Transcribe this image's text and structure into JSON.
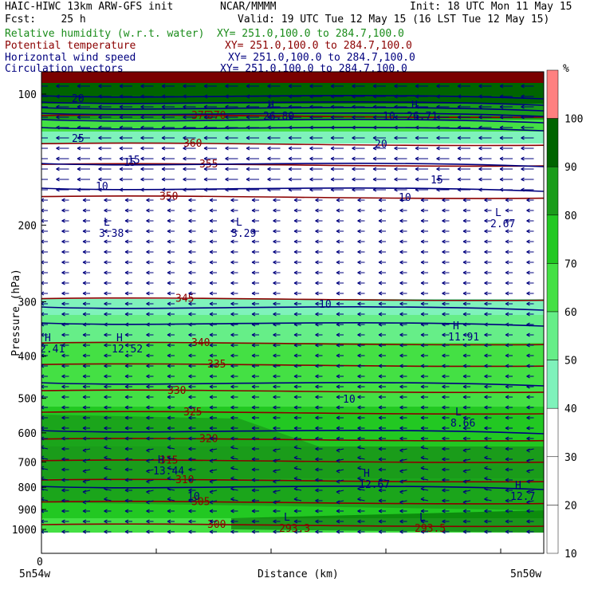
{
  "header": {
    "model": "HAIC-HIWC 13km ARW-GFS init",
    "org": "NCAR/MMMM",
    "init": "Init: 18 UTC Mon 11 May 15",
    "fcst": "Fcst:    25 h",
    "valid": "Valid: 19 UTC Tue 12 May 15 (16 LST Tue 12 May 15)"
  },
  "fields": [
    {
      "name": "Relative humidity (w.r.t. water)",
      "xy": "XY= 251.0,100.0 to 284.7,100.0",
      "color": "#1a8c1a"
    },
    {
      "name": "Potential temperature",
      "xy": "XY= 251.0,100.0 to 284.7,100.0",
      "color": "#8b0000"
    },
    {
      "name": "Horizontal wind speed",
      "xy": "XY= 251.0,100.0 to 284.7,100.0",
      "color": "#00007f"
    },
    {
      "name": "Circulation vectors",
      "xy": "XY= 251.0,100.0 to 284.7,100.0",
      "color": "#00007f"
    }
  ],
  "axes": {
    "ylabel": "Pressure (hPa)",
    "xlabel": "Distance (km)",
    "x_left_label": "5n54w",
    "x_right_label": "5n50w",
    "x_zero": "0",
    "y_ticks": [
      "100",
      "200",
      "300",
      "400",
      "500",
      "600",
      "700",
      "800",
      "900",
      "1000"
    ]
  },
  "colorbar": {
    "unit": "%",
    "labels": [
      "100",
      "90",
      "80",
      "70",
      "60",
      "50",
      "40",
      "30",
      "20",
      "10"
    ],
    "colors": [
      "#ff8080",
      "#006400",
      "#1a9c1a",
      "#22c822",
      "#44e044",
      "#66ee88",
      "#7ff2bb",
      "#ffffff",
      "#ffffff",
      "#ffffff",
      "#ffffff"
    ]
  },
  "chart_data": {
    "type": "heatmap",
    "y_range_hpa": [
      1000,
      100
    ],
    "y_scale": "log",
    "theta_contours": [
      {
        "label": "375",
        "p": 112
      },
      {
        "label": "370",
        "p": 112
      },
      {
        "label": "360",
        "p": 130
      },
      {
        "label": "355",
        "p": 145
      },
      {
        "label": "350",
        "p": 172
      },
      {
        "label": "345",
        "p": 295
      },
      {
        "label": "340",
        "p": 373
      },
      {
        "label": "335",
        "p": 418
      },
      {
        "label": "330",
        "p": 480
      },
      {
        "label": "325",
        "p": 538
      },
      {
        "label": "320",
        "p": 620
      },
      {
        "label": "315",
        "p": 695
      },
      {
        "label": "310",
        "p": 770
      },
      {
        "label": "305",
        "p": 865
      },
      {
        "label": "300",
        "p": 975
      }
    ],
    "wind_labels": [
      "15",
      "20",
      "25",
      "15",
      "10",
      "10",
      "10",
      "10",
      "10",
      "10",
      "20",
      "15"
    ],
    "extrema": [
      {
        "type": "L",
        "value": "3.38"
      },
      {
        "type": "L",
        "value": "3.29"
      },
      {
        "type": "L",
        "value": "2.67"
      },
      {
        "type": "H",
        "value": "2.41"
      },
      {
        "type": "H",
        "value": "12.52"
      },
      {
        "type": "H",
        "value": "11.91"
      },
      {
        "type": "L",
        "value": "8.66"
      },
      {
        "type": "H",
        "value": "13.44"
      },
      {
        "type": "H",
        "value": "12.67"
      },
      {
        "type": "H",
        "value": "12.7"
      },
      {
        "type": "L",
        "value": "293.3"
      },
      {
        "type": "L",
        "value": "293.5"
      },
      {
        "type": "H",
        "value": "26.80"
      },
      {
        "type": "H",
        "value": "26.71"
      }
    ]
  }
}
